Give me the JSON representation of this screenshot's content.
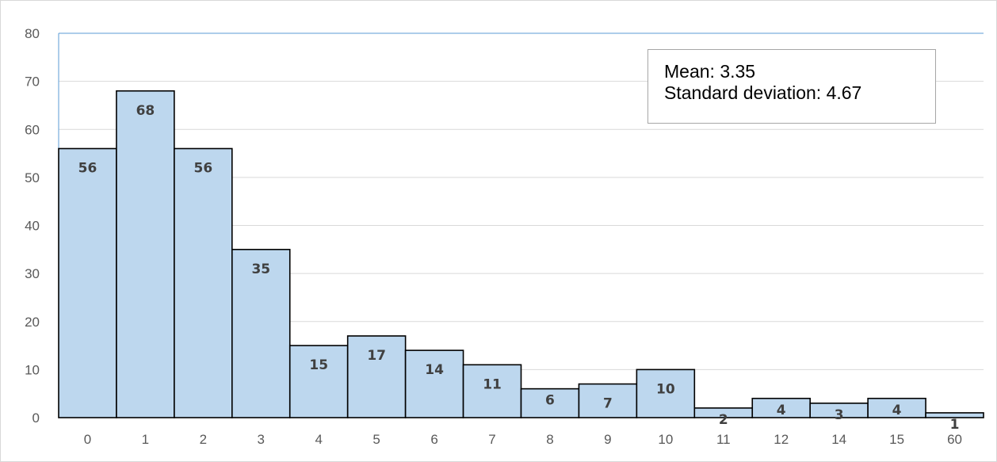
{
  "chart_data": {
    "type": "bar",
    "categories": [
      "0",
      "1",
      "2",
      "3",
      "4",
      "5",
      "6",
      "7",
      "8",
      "9",
      "10",
      "11",
      "12",
      "14",
      "15",
      "60"
    ],
    "values": [
      56,
      68,
      56,
      35,
      15,
      17,
      14,
      11,
      6,
      7,
      10,
      2,
      4,
      3,
      4,
      1
    ],
    "ylim": [
      0,
      80
    ],
    "yticks": [
      0,
      10,
      20,
      30,
      40,
      50,
      60,
      70,
      80
    ],
    "grid": true,
    "bar_color": "#bdd7ee",
    "bar_edge_color": "#000000",
    "title": "",
    "xlabel": "",
    "ylabel": "",
    "annotation": {
      "mean_text": "Mean: 3.35",
      "std_text": "Standard deviation: 4.67"
    }
  }
}
